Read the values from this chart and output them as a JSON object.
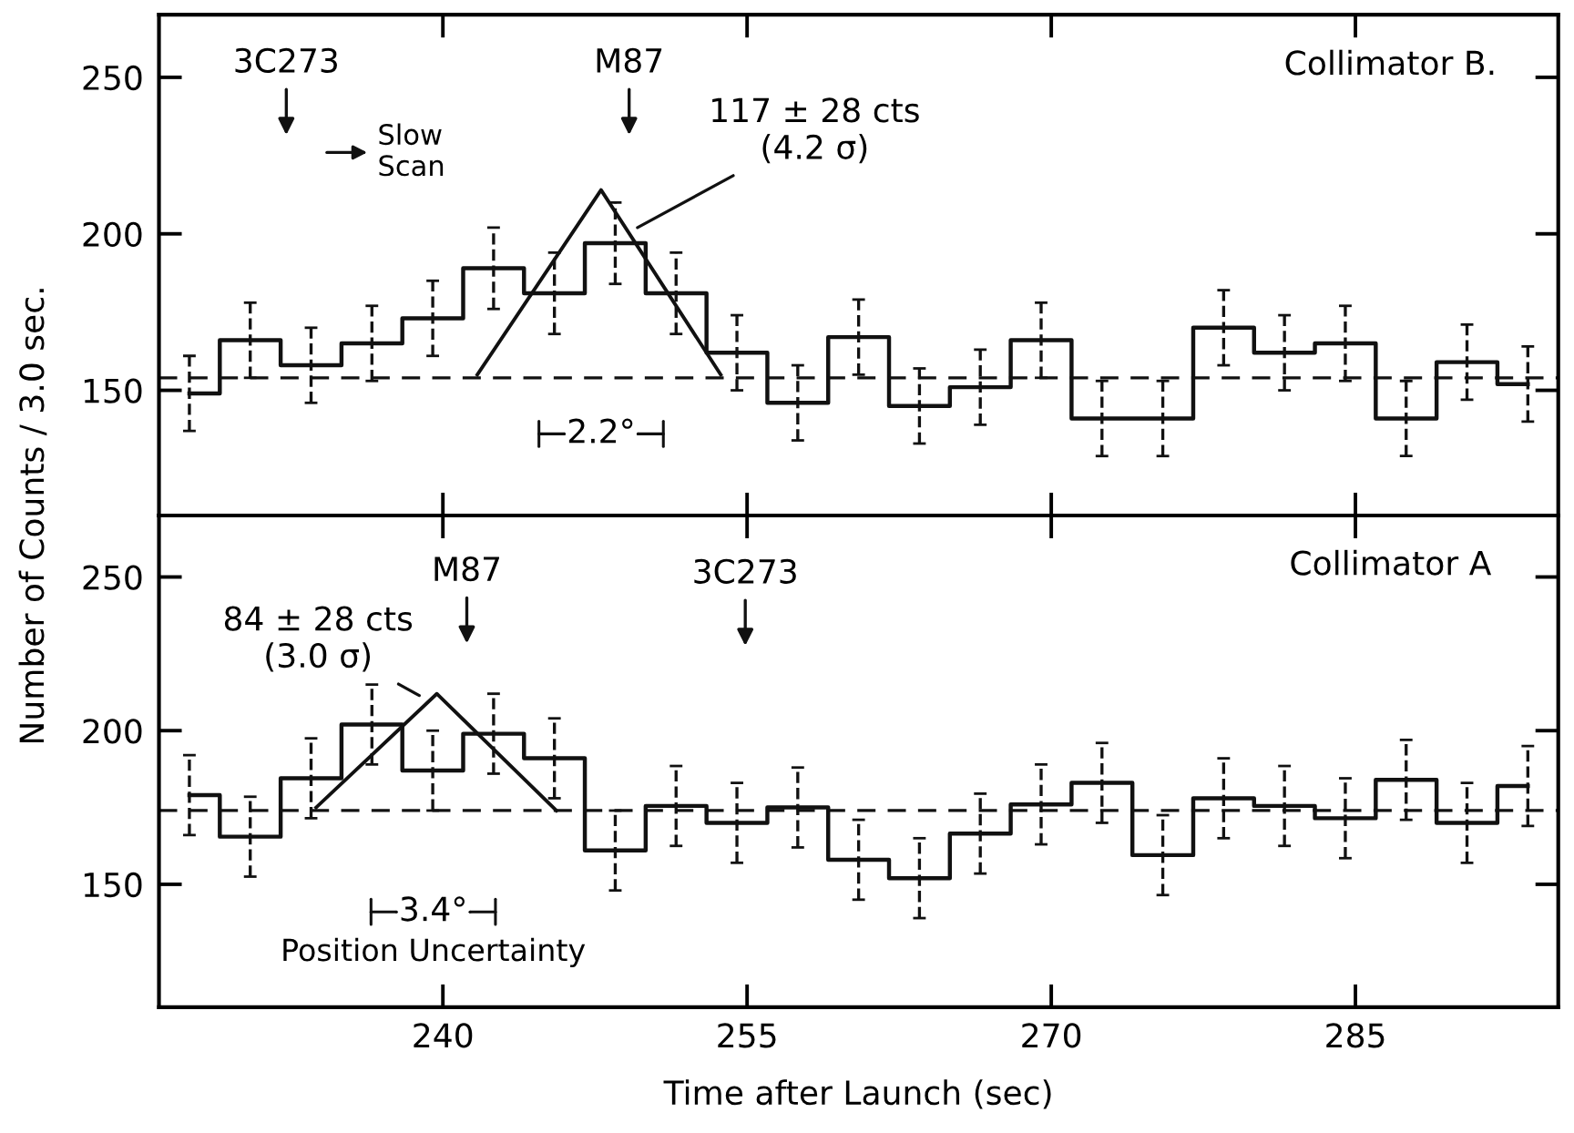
{
  "chart_data": [
    {
      "type": "step",
      "title": "Collimator B.",
      "ylabel": "Number of Counts / 3.0 sec.",
      "xlim": [
        226,
        295
      ],
      "xticks": [
        240,
        255,
        270,
        285
      ],
      "ylim": [
        110,
        270
      ],
      "yticks": [
        150,
        200,
        250
      ],
      "tick_labels": "y",
      "line_style": "solid",
      "series": [
        {
          "color": "#111111",
          "x": [
            227.5,
            230.5,
            233.5,
            236.5,
            239.5,
            242.5,
            245.5,
            248.5,
            251.5,
            254.5,
            257.5,
            260.5,
            263.5,
            266.5,
            269.5,
            272.5,
            275.5,
            278.5,
            281.5,
            284.5,
            287.5,
            290.5,
            293.5
          ],
          "values": [
            149,
            166,
            158,
            165,
            173,
            189,
            181,
            197,
            181,
            162,
            146,
            167,
            145,
            151,
            166,
            141,
            141,
            170,
            162,
            165,
            141,
            159,
            152
          ],
          "errors": [
            12,
            12,
            12,
            12,
            12,
            13,
            13,
            13,
            13,
            12,
            12,
            12,
            12,
            12,
            12,
            12,
            12,
            12,
            12,
            12,
            12,
            12,
            12
          ]
        },
        {
          "type": "line",
          "color": "#111111",
          "x": [
            241.7,
            247.8,
            253.7
          ],
          "values": [
            155,
            214,
            155
          ]
        }
      ],
      "ref_lines": [
        {
          "axis": "y",
          "value": 154,
          "color": "#111111",
          "line_style": "dashed"
        }
      ],
      "annotations": [
        "3C273",
        "M87",
        "Slow\nScan",
        "117 ± 28 cts\n(4.2 σ)",
        "2.2°"
      ]
    },
    {
      "type": "step",
      "title": "Collimator A",
      "xlabel": "Time after Launch (sec)",
      "xlim": [
        226,
        295
      ],
      "xticks": [
        240,
        255,
        270,
        285
      ],
      "ylim": [
        110,
        270
      ],
      "yticks": [
        150,
        200,
        250
      ],
      "line_style": "solid",
      "series": [
        {
          "color": "#111111",
          "x": [
            227.5,
            230.5,
            233.5,
            236.5,
            239.5,
            242.5,
            245.5,
            248.5,
            251.5,
            254.5,
            257.5,
            260.5,
            263.5,
            266.5,
            269.5,
            272.5,
            275.5,
            278.5,
            281.5,
            284.5,
            287.5,
            290.5,
            293.5
          ],
          "values": [
            179,
            165.5,
            184.5,
            202,
            187,
            199,
            191,
            161,
            175.5,
            170,
            175,
            158,
            152,
            166.5,
            176,
            183,
            159.5,
            178,
            175.5,
            171.5,
            184,
            170,
            182
          ],
          "errors": [
            13,
            13,
            13,
            13,
            13,
            13,
            13,
            13,
            13,
            13,
            13,
            13,
            13,
            13,
            13,
            13,
            13,
            13,
            13,
            13,
            13,
            13,
            13
          ]
        },
        {
          "type": "line",
          "color": "#111111",
          "x": [
            233.75,
            239.7,
            245.6
          ],
          "values": [
            175,
            212,
            174
          ]
        }
      ],
      "ref_lines": [
        {
          "axis": "y",
          "value": 174,
          "color": "#111111",
          "line_style": "dashed"
        }
      ],
      "annotations": [
        "M87",
        "3C273",
        "84 ± 28 cts\n(3.0 σ)",
        "3.4°",
        "Position Uncertainty"
      ]
    }
  ]
}
